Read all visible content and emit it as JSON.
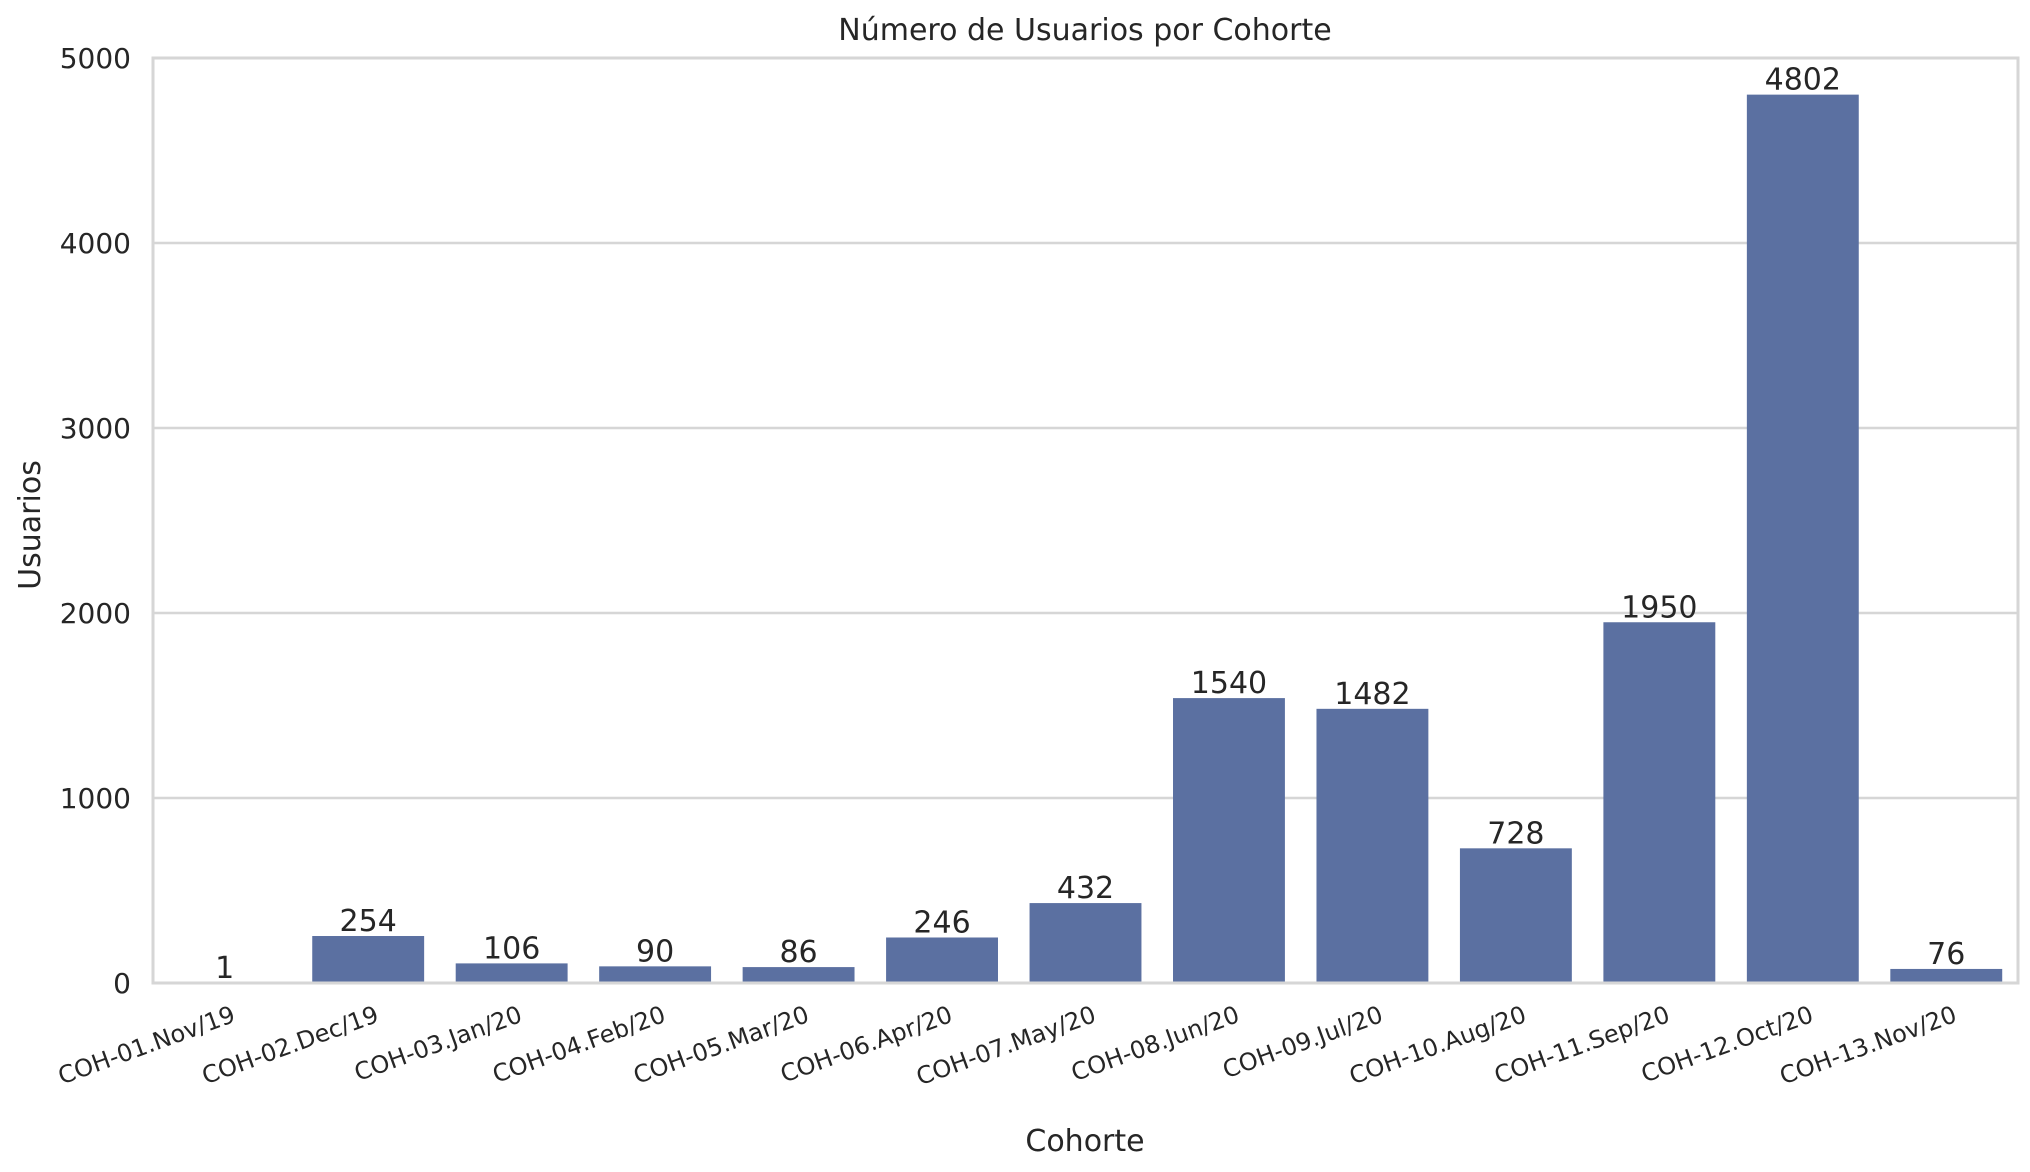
{
  "chart_data": {
    "type": "bar",
    "title": "Número de Usuarios por Cohorte",
    "xlabel": "Cohorte",
    "ylabel": "Usuarios",
    "categories": [
      "COH-01.Nov/19",
      "COH-02.Dec/19",
      "COH-03.Jan/20",
      "COH-04.Feb/20",
      "COH-05.Mar/20",
      "COH-06.Apr/20",
      "COH-07.May/20",
      "COH-08.Jun/20",
      "COH-09.Jul/20",
      "COH-10.Aug/20",
      "COH-11.Sep/20",
      "COH-12.Oct/20",
      "COH-13.Nov/20"
    ],
    "values": [
      1,
      254,
      106,
      90,
      86,
      246,
      432,
      1540,
      1482,
      728,
      1950,
      4802,
      76
    ],
    "data_labels": [
      "1",
      "254",
      "106",
      "90",
      "86",
      "246",
      "432",
      "1540",
      "1482",
      "728",
      "1950",
      "4802",
      "76"
    ],
    "ylim": [
      0,
      5000
    ],
    "yticks": [
      0,
      1000,
      2000,
      3000,
      4000,
      5000
    ],
    "ytick_labels": [
      "0",
      "1000",
      "2000",
      "3000",
      "4000",
      "5000"
    ],
    "grid": true,
    "bar_color": "#5b70a1",
    "grid_color": "#d6d6d6",
    "text_color": "#262626"
  }
}
